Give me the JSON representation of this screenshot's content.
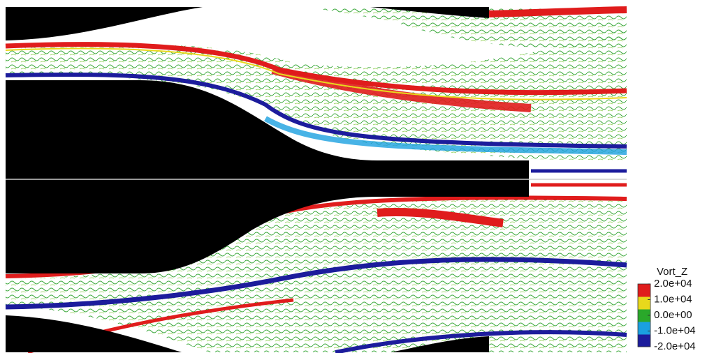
{
  "colorbar": {
    "title": "Vort_Z",
    "ticks": [
      {
        "value": 20000,
        "label": "2.0e+04"
      },
      {
        "value": 10000,
        "label": "1.0e+04"
      },
      {
        "value": 0,
        "label": "0.0e+00"
      },
      {
        "value": -10000,
        "label": "-1.0e+04"
      },
      {
        "value": -20000,
        "label": "-2.0e+04"
      }
    ],
    "colors": [
      "#1c1c9c",
      "#1aa0e0",
      "#2aa82a",
      "#e8d81c",
      "#e01c1c"
    ]
  }
}
